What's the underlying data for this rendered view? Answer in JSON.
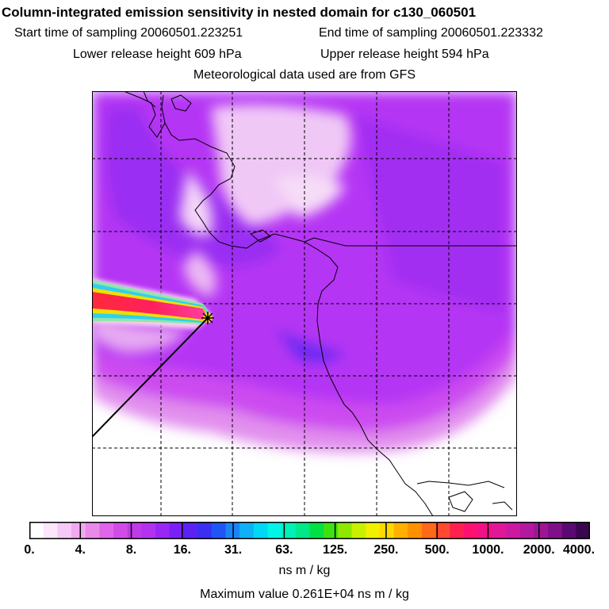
{
  "header": {
    "title": "Column-integrated emission sensitivity in nested domain for c130_060501",
    "start_label": "Start time of sampling 20060501.223251",
    "end_label": "End time of sampling 20060501.223332",
    "lower_label": "Lower release height  609 hPa",
    "upper_label": "Upper release height  594 hPa",
    "met_label": "Meteorological data used are from GFS"
  },
  "colorbar": {
    "ticks": [
      "0.",
      "4.",
      "8.",
      "16.",
      "31.",
      "63.",
      "125.",
      "250.",
      "500.",
      "1000.",
      "2000.",
      "4000."
    ],
    "colors": [
      "#ffffff",
      "#fbe6fb",
      "#f6c9f6",
      "#f0aaf0",
      "#e98ae9",
      "#df66ea",
      "#d24be8",
      "#c13ae7",
      "#b232f0",
      "#9a26f4",
      "#7b1ff6",
      "#5c22f4",
      "#3b2ff2",
      "#1f55f4",
      "#1a84f4",
      "#10b0f6",
      "#00d8f4",
      "#00f4e8",
      "#00f0b8",
      "#00e888",
      "#00e045",
      "#40e010",
      "#8ee800",
      "#c8f000",
      "#f0f000",
      "#ffd800",
      "#ffb000",
      "#ff9000",
      "#ff6a18",
      "#ff4a30",
      "#ff2050",
      "#ff1070",
      "#f01088",
      "#e01898",
      "#cc1aa0",
      "#b4189e",
      "#9c1696",
      "#80108a",
      "#5a0a70",
      "#3a0650"
    ],
    "units": "ns m / kg",
    "max_value": "Maximum value  0.261E+04 ns m / kg"
  },
  "map_features": {
    "receptor_marker": "receptor-point"
  }
}
